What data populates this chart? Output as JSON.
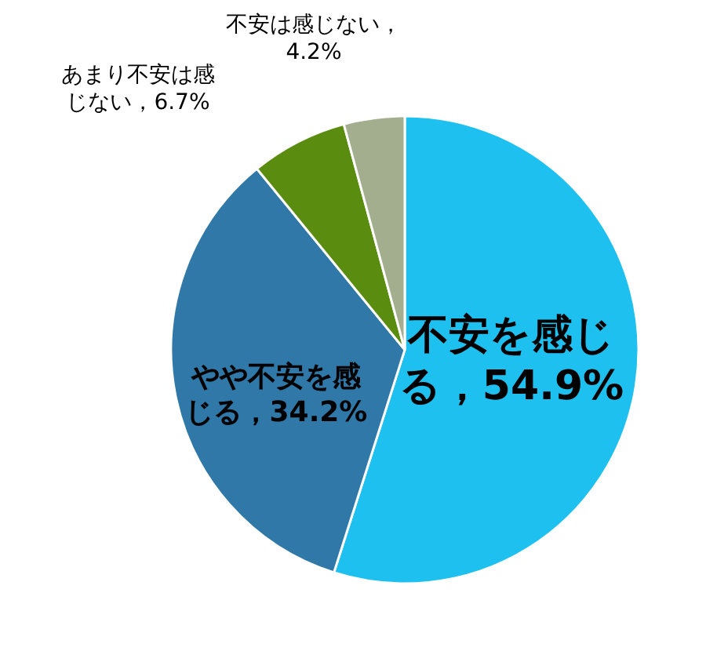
{
  "chart_data": {
    "type": "pie",
    "categories": [
      "不安を感じる",
      "やや不安を感じる",
      "あまり不安は感じない",
      "不安は感じない"
    ],
    "values": [
      54.9,
      34.2,
      6.7,
      4.2
    ],
    "colors": [
      "#1ec0f0",
      "#2f78a8",
      "#5a8c10",
      "#a3ae8e"
    ],
    "value_labels": [
      "，54.9%",
      "，34.2%",
      "，6.7%",
      "，4.2%"
    ]
  }
}
